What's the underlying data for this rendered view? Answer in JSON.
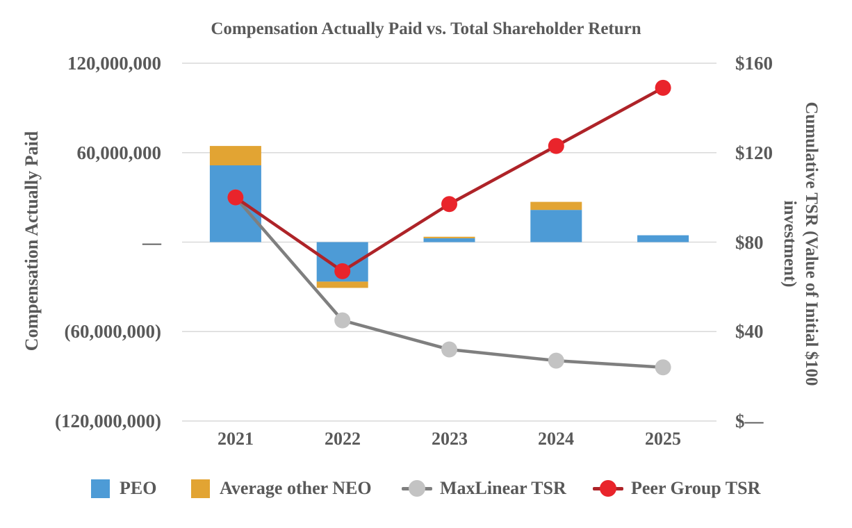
{
  "chart_data": {
    "type": "combo: stacked bars (left axis) + lines with markers (right axis)",
    "title": "Compensation Actually Paid vs. Total Shareholder Return",
    "categories": [
      "2021",
      "2022",
      "2023",
      "2024",
      "2025"
    ],
    "left_axis": {
      "title": "Compensation Actually Paid",
      "tick_labels": [
        "120,000,000",
        "60,000,000",
        "—",
        "(60,000,000)",
        "(120,000,000)"
      ],
      "min": -120000000,
      "max": 120000000
    },
    "right_axis": {
      "title": "Cumulative TSR (Value of Initial $100 investment)",
      "tick_labels": [
        "$160",
        "$120",
        "$80",
        "$40",
        "$—"
      ],
      "min": 0,
      "max": 160
    },
    "grid": "horizontal gridlines only",
    "legend_position": "bottom",
    "series": [
      {
        "name": "PEO",
        "type": "bar",
        "axis": "left",
        "color": "#4D9BD6",
        "values": [
          51500000,
          -26500000,
          2600000,
          21600000,
          4600000
        ]
      },
      {
        "name": "Average other NEO",
        "type": "bar",
        "axis": "left",
        "color": "#E2A433",
        "values": [
          13000000,
          -4200000,
          1000000,
          5400000,
          0
        ]
      },
      {
        "name": "MaxLinear TSR",
        "type": "line",
        "axis": "right",
        "line_color": "#7F7F7F",
        "marker_color": "#C3C3C3",
        "values": [
          100,
          45,
          32,
          27,
          24
        ]
      },
      {
        "name": "Peer Group TSR",
        "type": "line",
        "axis": "right",
        "line_color": "#AE2328",
        "marker_color": "#E9242B",
        "values": [
          100,
          67,
          97,
          123,
          149
        ]
      }
    ],
    "legend": [
      {
        "label": "PEO",
        "marker": "square",
        "color": "#4D9BD6"
      },
      {
        "label": "Average other NEO",
        "marker": "square",
        "color": "#E2A433"
      },
      {
        "label": "MaxLinear TSR",
        "marker": "line-dot",
        "line_color": "#7F7F7F",
        "dot_color": "#C3C3C3"
      },
      {
        "label": "Peer Group TSR",
        "marker": "line-dot",
        "line_color": "#AE2328",
        "dot_color": "#E9242B"
      }
    ],
    "colors": {
      "text": "#595959",
      "gridline": "#D9D9D9"
    }
  }
}
